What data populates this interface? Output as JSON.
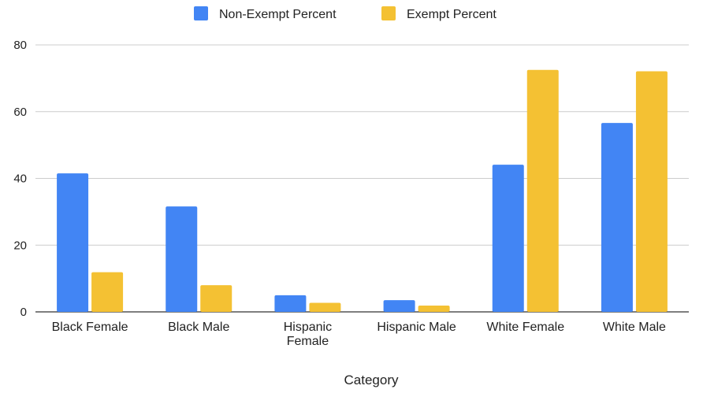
{
  "chart_data": {
    "type": "bar",
    "title": "",
    "xlabel": "Category",
    "ylabel": "",
    "ylim": [
      0,
      80
    ],
    "yticks": [
      0,
      20,
      40,
      60,
      80
    ],
    "grid": true,
    "legend_position": "top-center",
    "categories": [
      [
        "Black Female"
      ],
      [
        "Black Male"
      ],
      [
        "Hispanic",
        "Female"
      ],
      [
        "Hispanic Male"
      ],
      [
        "White Female"
      ],
      [
        "White Male"
      ]
    ],
    "series": [
      {
        "name": "Non-Exempt Percent",
        "color": "#4285F4",
        "values": [
          41.5,
          31.6,
          5.0,
          3.5,
          44.1,
          56.6
        ]
      },
      {
        "name": "Exempt Percent",
        "color": "#F4C133",
        "values": [
          11.9,
          8.0,
          2.7,
          1.9,
          72.5,
          72.1
        ]
      }
    ]
  }
}
